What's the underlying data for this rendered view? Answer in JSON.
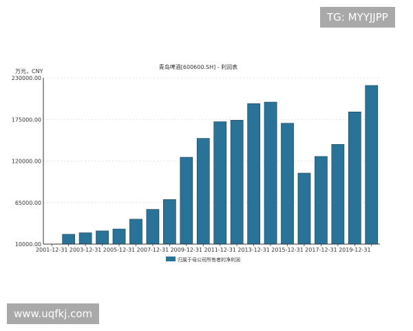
{
  "overlays": {
    "watermark_top": "TG: MYYJJPP",
    "watermark_bottom": "www.uqfkj.com"
  },
  "chart_data": {
    "type": "bar",
    "title": "青岛啤酒[600600.SH] - 利润表",
    "unit_label": "万元，CNY",
    "ylim": [
      10000,
      230000
    ],
    "y_ticks": [
      10000,
      65000,
      120000,
      175000,
      230000
    ],
    "y_tick_labels": [
      "10000.00",
      "65000.00",
      "120000.00",
      "175000.00",
      "230000.00"
    ],
    "categories": [
      "2001-12-31",
      "2002-12-31",
      "2003-12-31",
      "2004-12-31",
      "2005-12-31",
      "2006-12-31",
      "2007-12-31",
      "2008-12-31",
      "2009-12-31",
      "2010-12-31",
      "2011-12-31",
      "2012-12-31",
      "2013-12-31",
      "2014-12-31",
      "2015-12-31",
      "2016-12-31",
      "2017-12-31",
      "2018-12-31",
      "2019-12-31",
      "2020-12-31"
    ],
    "x_tick_labels": [
      "2001-12-31",
      "2003-12-31",
      "2005-12-31",
      "2007-12-31",
      "2009-12-31",
      "2011-12-31",
      "2013-12-31",
      "2015-12-31",
      "2017-12-31",
      "2019-12-31"
    ],
    "series": [
      {
        "name": "归属于母公司所有者的净利润",
        "color": "#2a7398",
        "values": [
          10000,
          23000,
          25000,
          27500,
          30000,
          43000,
          56000,
          69000,
          125000,
          150000,
          172000,
          174000,
          196000,
          198000,
          170000,
          104000,
          126000,
          142000,
          185000,
          220000
        ]
      }
    ],
    "grid": "horizontal dashed",
    "legend_position": "bottom-center"
  }
}
